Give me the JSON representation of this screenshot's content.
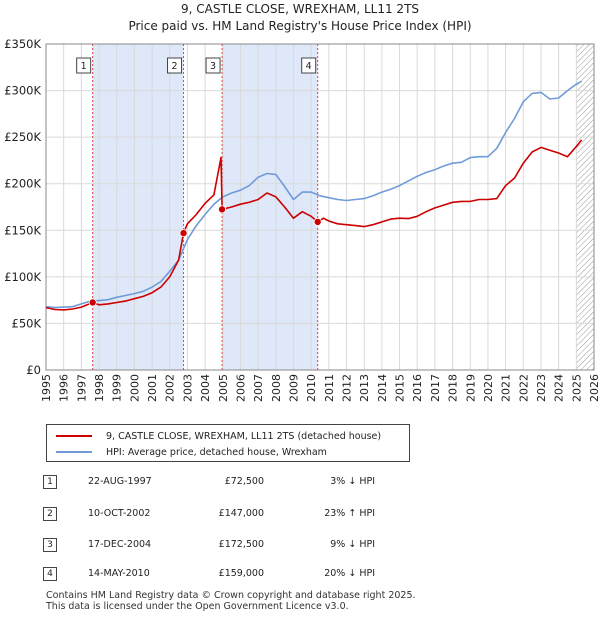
{
  "chart_data": {
    "type": "line",
    "title": "9, CASTLE CLOSE, WREXHAM, LL11 2TS",
    "subtitle": "Price paid vs. HM Land Registry's House Price Index (HPI)",
    "xlabel": "",
    "ylabel": "",
    "xlim": [
      1995,
      2026
    ],
    "ylim": [
      0,
      350000
    ],
    "y_ticks": [
      0,
      50000,
      100000,
      150000,
      200000,
      250000,
      300000,
      350000
    ],
    "y_tick_labels": [
      "£0",
      "£50K",
      "£100K",
      "£150K",
      "£200K",
      "£250K",
      "£300K",
      "£350K"
    ],
    "x_ticks": [
      1995,
      1996,
      1997,
      1998,
      1999,
      2000,
      2001,
      2002,
      2003,
      2004,
      2005,
      2006,
      2007,
      2008,
      2009,
      2010,
      2011,
      2012,
      2013,
      2014,
      2015,
      2016,
      2017,
      2018,
      2019,
      2020,
      2021,
      2022,
      2023,
      2024,
      2025,
      2026
    ],
    "x_tick_labels": [
      "1995",
      "1996",
      "1997",
      "1998",
      "1999",
      "2000",
      "2001",
      "2002",
      "2003",
      "2004",
      "2005",
      "2006",
      "2007",
      "2008",
      "2009",
      "2010",
      "2011",
      "2012",
      "2013",
      "2014",
      "2015",
      "2016",
      "2017",
      "2018",
      "2019",
      "2020",
      "2021",
      "2022",
      "2023",
      "2024",
      "2025",
      "2026"
    ],
    "shaded_ranges": [
      [
        1997.64,
        2002.78
      ],
      [
        2004.96,
        2010.37
      ]
    ],
    "hatched_from": 2025.0,
    "series": [
      {
        "name": "9, CASTLE CLOSE, WREXHAM, LL11 2TS (detached house)",
        "color": "#cc0000",
        "x": [
          1995.0,
          1995.5,
          1996.0,
          1996.5,
          1997.0,
          1997.64,
          1998.0,
          1998.5,
          1999.0,
          1999.5,
          2000.0,
          2000.5,
          2001.0,
          2001.5,
          2002.0,
          2002.5,
          2002.78,
          2003.0,
          2003.5,
          2004.0,
          2004.5,
          2004.9,
          2004.96,
          2005.5,
          2006.0,
          2006.5,
          2007.0,
          2007.5,
          2008.0,
          2008.5,
          2009.0,
          2009.5,
          2010.0,
          2010.37,
          2010.7,
          2011.0,
          2011.5,
          2012.0,
          2012.5,
          2013.0,
          2013.5,
          2014.0,
          2014.5,
          2015.0,
          2015.5,
          2016.0,
          2016.5,
          2017.0,
          2017.5,
          2018.0,
          2018.5,
          2019.0,
          2019.5,
          2020.0,
          2020.5,
          2021.0,
          2021.5,
          2022.0,
          2022.5,
          2023.0,
          2023.5,
          2024.0,
          2024.5,
          2025.0,
          2025.3
        ],
        "values": [
          67000,
          65000,
          64500,
          65500,
          67500,
          72500,
          70000,
          71000,
          72500,
          74000,
          76500,
          79000,
          83000,
          89000,
          100000,
          118000,
          147000,
          157000,
          167000,
          179000,
          188000,
          228000,
          172500,
          175000,
          178000,
          180000,
          183000,
          190000,
          186000,
          175000,
          163000,
          170000,
          165000,
          159000,
          163000,
          160000,
          157000,
          156000,
          155000,
          154000,
          156000,
          159000,
          162000,
          163000,
          162500,
          165000,
          170000,
          174000,
          177000,
          180000,
          181000,
          181000,
          183000,
          183000,
          184000,
          198000,
          206000,
          222000,
          234000,
          239000,
          236000,
          233000,
          229000,
          240000,
          247000
        ]
      },
      {
        "name": "HPI: Average price, detached house, Wrexham",
        "color": "#6f9bd8",
        "x": [
          1995.0,
          1995.5,
          1996.0,
          1996.5,
          1997.0,
          1997.5,
          1998.0,
          1998.5,
          1999.0,
          1999.5,
          2000.0,
          2000.5,
          2001.0,
          2001.5,
          2002.0,
          2002.5,
          2003.0,
          2003.5,
          2004.0,
          2004.5,
          2005.0,
          2005.5,
          2006.0,
          2006.5,
          2007.0,
          2007.5,
          2008.0,
          2008.5,
          2009.0,
          2009.5,
          2010.0,
          2010.5,
          2011.0,
          2011.5,
          2012.0,
          2012.5,
          2013.0,
          2013.5,
          2014.0,
          2014.5,
          2015.0,
          2015.5,
          2016.0,
          2016.5,
          2017.0,
          2017.5,
          2018.0,
          2018.5,
          2019.0,
          2019.5,
          2020.0,
          2020.5,
          2021.0,
          2021.5,
          2022.0,
          2022.5,
          2023.0,
          2023.5,
          2024.0,
          2024.5,
          2025.0,
          2025.3
        ],
        "values": [
          68000,
          67000,
          67500,
          68000,
          71000,
          74000,
          74500,
          75500,
          78000,
          80000,
          82000,
          84500,
          89000,
          95000,
          106000,
          118000,
          140000,
          155000,
          167000,
          178000,
          186000,
          190000,
          193000,
          198000,
          207000,
          211000,
          210000,
          197000,
          183000,
          191000,
          191000,
          187000,
          185000,
          183000,
          182000,
          183000,
          184000,
          187000,
          191000,
          194000,
          198000,
          203000,
          208000,
          212000,
          215000,
          219000,
          222000,
          223000,
          228000,
          229000,
          229000,
          238000,
          255000,
          270000,
          288000,
          297000,
          298000,
          291000,
          292000,
          300000,
          307000,
          310000
        ]
      }
    ],
    "sales": [
      {
        "num": "1",
        "year": 1997.64,
        "price": 72500,
        "date": "22-AUG-1997",
        "price_label": "£72,500",
        "hpi": "3% ↓ HPI"
      },
      {
        "num": "2",
        "year": 2002.78,
        "price": 147000,
        "date": "10-OCT-2002",
        "price_label": "£147,000",
        "hpi": "23% ↑ HPI"
      },
      {
        "num": "3",
        "year": 2004.96,
        "price": 172500,
        "date": "17-DEC-2004",
        "price_label": "£172,500",
        "hpi": "9% ↓ HPI"
      },
      {
        "num": "4",
        "year": 2010.37,
        "price": 159000,
        "date": "14-MAY-2010",
        "price_label": "£159,000",
        "hpi": "20% ↓ HPI"
      }
    ]
  },
  "legend": {
    "property_label": "9, CASTLE CLOSE, WREXHAM, LL11 2TS (detached house)",
    "hpi_label": "HPI: Average price, detached house, Wrexham"
  },
  "footer": {
    "line1": "Contains HM Land Registry data © Crown copyright and database right 2025.",
    "line2": "This data is licensed under the Open Government Licence v3.0."
  }
}
